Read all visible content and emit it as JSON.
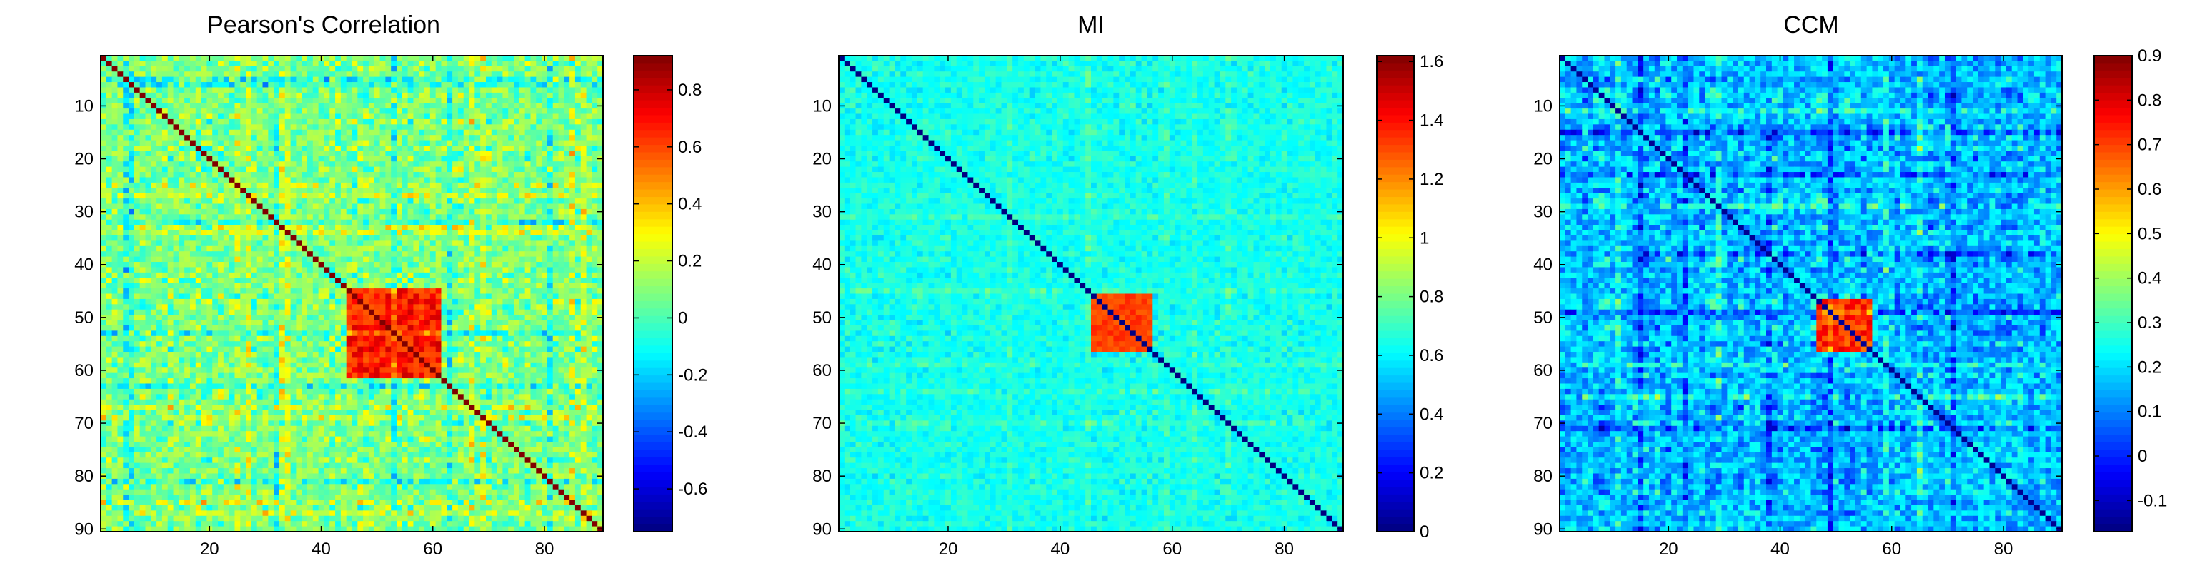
{
  "chart_data": [
    {
      "type": "heatmap",
      "title": "Pearson's Correlation",
      "matrix_size": 90,
      "x_ticks": [
        20,
        40,
        60,
        80
      ],
      "y_ticks": [
        10,
        20,
        30,
        40,
        50,
        60,
        70,
        80,
        90
      ],
      "clim": [
        -0.75,
        0.92
      ],
      "colorbar_ticks": [
        {
          "value": 0.8,
          "label": "0.8"
        },
        {
          "value": 0.6,
          "label": "0.6"
        },
        {
          "value": 0.4,
          "label": "0.4"
        },
        {
          "value": 0.2,
          "label": "0.2"
        },
        {
          "value": 0,
          "label": "0"
        },
        {
          "value": -0.2,
          "label": "-0.2"
        },
        {
          "value": -0.4,
          "label": "-0.4"
        },
        {
          "value": -0.6,
          "label": "-0.6"
        }
      ],
      "colormap": "jet",
      "pattern": {
        "diagonal": 1.0,
        "base": 0.08,
        "noise": 0.3,
        "block": {
          "start": 44,
          "end": 60,
          "value": 0.68
        },
        "positive_bands": [
          24,
          26,
          32,
          33,
          66,
          68,
          84,
          86
        ],
        "negative_bands": [
          4,
          5,
          31,
          52,
          62,
          80
        ]
      }
    },
    {
      "type": "heatmap",
      "title": "MI",
      "matrix_size": 90,
      "x_ticks": [
        20,
        40,
        60,
        80
      ],
      "y_ticks": [
        10,
        20,
        30,
        40,
        50,
        60,
        70,
        80,
        90
      ],
      "clim": [
        0,
        1.62
      ],
      "colorbar_ticks": [
        {
          "value": 1.6,
          "label": "1.6"
        },
        {
          "value": 1.4,
          "label": "1.4"
        },
        {
          "value": 1.2,
          "label": "1.2"
        },
        {
          "value": 1,
          "label": "1"
        },
        {
          "value": 0.8,
          "label": "0.8"
        },
        {
          "value": 0.6,
          "label": "0.6"
        },
        {
          "value": 0.4,
          "label": "0.4"
        },
        {
          "value": 0.2,
          "label": "0.2"
        },
        {
          "value": 0,
          "label": "0"
        }
      ],
      "colormap": "jet",
      "pattern": {
        "diagonal": 0.0,
        "base": 0.64,
        "noise": 0.14,
        "block": {
          "start": 45,
          "end": 55,
          "value": 1.32
        },
        "positive_bands": [
          30,
          44,
          58,
          63,
          69
        ],
        "negative_bands": []
      }
    },
    {
      "type": "heatmap",
      "title": "CCM",
      "matrix_size": 90,
      "x_ticks": [
        20,
        40,
        60,
        80
      ],
      "y_ticks": [
        10,
        20,
        30,
        40,
        50,
        60,
        70,
        80,
        90
      ],
      "clim": [
        -0.17,
        0.9
      ],
      "colorbar_ticks": [
        {
          "value": 0.9,
          "label": "0.9"
        },
        {
          "value": 0.8,
          "label": "0.8"
        },
        {
          "value": 0.7,
          "label": "0.7"
        },
        {
          "value": 0.6,
          "label": "0.6"
        },
        {
          "value": 0.5,
          "label": "0.5"
        },
        {
          "value": 0.4,
          "label": "0.4"
        },
        {
          "value": 0.3,
          "label": "0.3"
        },
        {
          "value": 0.2,
          "label": "0.2"
        },
        {
          "value": 0.1,
          "label": "0.1"
        },
        {
          "value": 0,
          "label": "0"
        },
        {
          "value": -0.1,
          "label": "-0.1"
        }
      ],
      "colormap": "jet",
      "pattern": {
        "diagonal": -0.15,
        "base": 0.16,
        "noise": 0.2,
        "block": {
          "start": 46,
          "end": 55,
          "value": 0.72
        },
        "positive_bands": [
          10,
          28,
          58,
          64
        ],
        "negative_bands": [
          14,
          22,
          37,
          48,
          70
        ]
      }
    }
  ]
}
